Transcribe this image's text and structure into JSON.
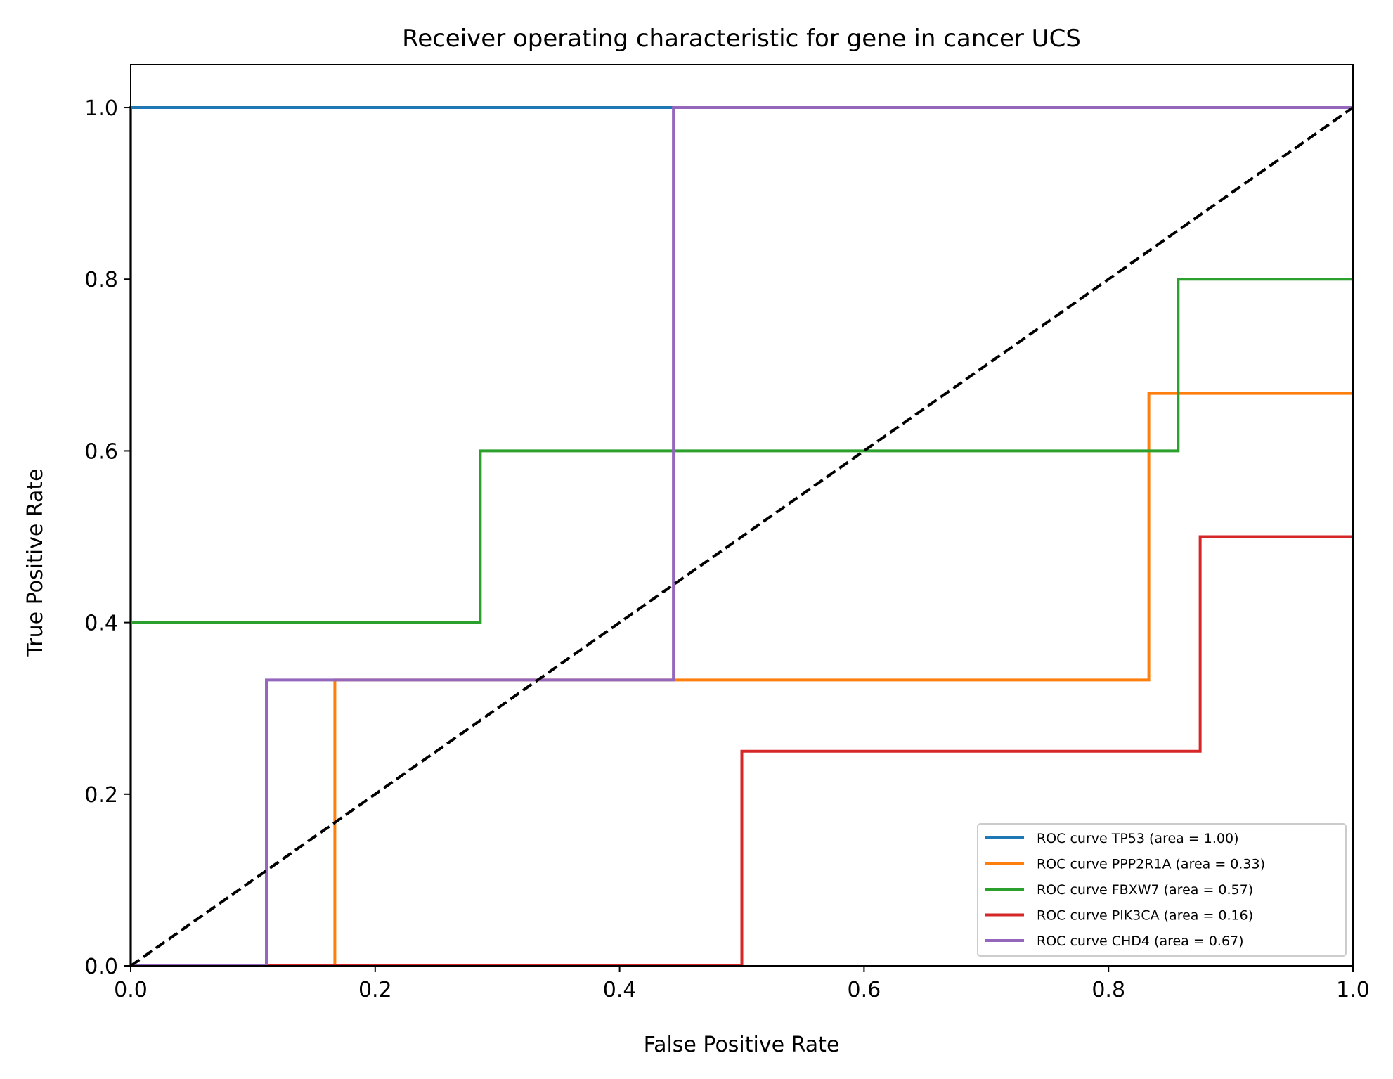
{
  "chart_data": {
    "type": "line",
    "title": "Receiver operating characteristic for gene in cancer UCS",
    "xlabel": "False Positive Rate",
    "ylabel": "True Positive Rate",
    "xlim": [
      0.0,
      1.0
    ],
    "ylim": [
      0.0,
      1.05
    ],
    "xticks": [
      0.0,
      0.2,
      0.4,
      0.6,
      0.8,
      1.0
    ],
    "yticks": [
      0.0,
      0.2,
      0.4,
      0.6,
      0.8,
      1.0
    ],
    "xtick_labels": [
      "0.0",
      "0.2",
      "0.4",
      "0.6",
      "0.8",
      "1.0"
    ],
    "ytick_labels": [
      "0.0",
      "0.2",
      "0.4",
      "0.6",
      "0.8",
      "1.0"
    ],
    "grid": false,
    "legend_position": "lower right",
    "series": [
      {
        "name": "ROC curve TP53 (area = 1.00)",
        "color": "#1f77b4",
        "x": [
          0.0,
          0.0,
          1.0
        ],
        "y": [
          0.0,
          1.0,
          1.0
        ]
      },
      {
        "name": "ROC curve PPP2R1A (area = 0.33)",
        "color": "#ff7f0e",
        "x": [
          0.0,
          0.167,
          0.167,
          0.833,
          0.833,
          1.0,
          1.0
        ],
        "y": [
          0.0,
          0.0,
          0.333,
          0.333,
          0.667,
          0.667,
          1.0
        ]
      },
      {
        "name": "ROC curve FBXW7 (area = 0.57)",
        "color": "#2ca02c",
        "x": [
          0.0,
          0.0,
          0.286,
          0.286,
          0.857,
          0.857,
          1.0,
          1.0
        ],
        "y": [
          0.0,
          0.4,
          0.4,
          0.6,
          0.6,
          0.8,
          0.8,
          1.0
        ]
      },
      {
        "name": "ROC curve PIK3CA (area = 0.16)",
        "color": "#d62728",
        "x": [
          0.0,
          0.5,
          0.5,
          0.875,
          0.875,
          1.0,
          1.0
        ],
        "y": [
          0.0,
          0.0,
          0.25,
          0.25,
          0.5,
          0.5,
          1.0
        ]
      },
      {
        "name": "ROC curve CHD4 (area = 0.67)",
        "color": "#9467bd",
        "x": [
          0.0,
          0.111,
          0.111,
          0.444,
          0.444,
          1.0
        ],
        "y": [
          0.0,
          0.0,
          0.333,
          0.333,
          1.0,
          1.0
        ]
      }
    ],
    "reference_line": {
      "x": [
        0.0,
        1.0
      ],
      "y": [
        0.0,
        1.0
      ],
      "color": "#000000",
      "style": "dashed"
    }
  }
}
